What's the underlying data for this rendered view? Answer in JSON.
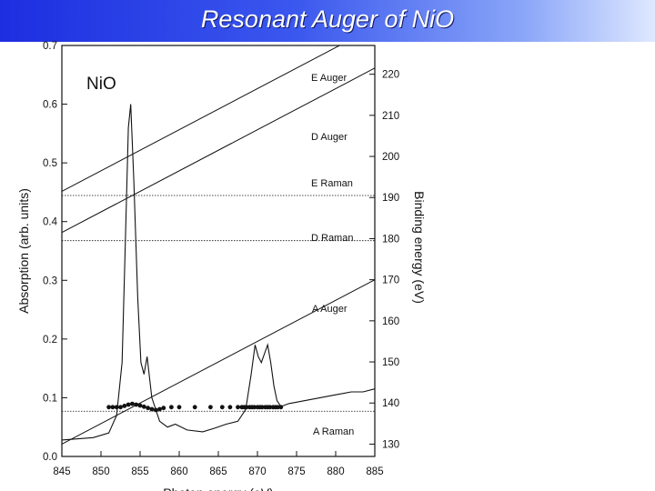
{
  "slide": {
    "title": "Resonant Auger of NiO"
  },
  "chart_data": {
    "type": "scatter",
    "title": "",
    "inset_label": "NiO",
    "xlabel": "Photon energy (eV)",
    "ylabel": "Absorption (arb. units)",
    "y2label": "Binding energy (eV)",
    "xlim": [
      845,
      885
    ],
    "ylim": [
      0,
      0.7
    ],
    "y2lim": [
      127,
      227
    ],
    "xticks": [
      845,
      850,
      855,
      860,
      865,
      870,
      875,
      880,
      885
    ],
    "yticks": [
      0.0,
      0.1,
      0.2,
      0.3,
      0.4,
      0.5,
      0.6,
      0.7
    ],
    "y2ticks": [
      130,
      140,
      150,
      160,
      170,
      180,
      190,
      200,
      210,
      220
    ],
    "guide_lines": [
      {
        "name": "E Auger",
        "kind": "auger",
        "binding_energy_at_845": 191.5
      },
      {
        "name": "D Auger",
        "kind": "auger",
        "binding_energy_at_845": 181.5
      },
      {
        "name": "A Auger",
        "kind": "auger",
        "binding_energy_at_845": 130.0
      },
      {
        "name": "E Raman",
        "kind": "raman",
        "binding_energy": 190.5
      },
      {
        "name": "D Raman",
        "kind": "raman",
        "binding_energy": 179.5
      },
      {
        "name": "A Raman",
        "kind": "raman",
        "binding_energy": 138.0
      }
    ],
    "absorption": {
      "x": [
        845,
        849,
        851,
        852,
        852.7,
        853.1,
        853.5,
        853.8,
        854.2,
        854.7,
        855.1,
        855.5,
        855.9,
        856.5,
        857.5,
        858.5,
        859.5,
        861,
        863,
        864.5,
        866,
        867.5,
        868.5,
        869.2,
        869.7,
        870.1,
        870.5,
        870.9,
        871.3,
        871.7,
        872.1,
        872.5,
        873,
        874,
        876,
        878,
        880,
        882,
        883.5,
        885
      ],
      "y": [
        0.028,
        0.032,
        0.04,
        0.07,
        0.16,
        0.36,
        0.56,
        0.6,
        0.47,
        0.27,
        0.16,
        0.14,
        0.17,
        0.1,
        0.06,
        0.05,
        0.055,
        0.045,
        0.042,
        0.048,
        0.055,
        0.06,
        0.08,
        0.14,
        0.19,
        0.17,
        0.16,
        0.175,
        0.19,
        0.16,
        0.12,
        0.095,
        0.085,
        0.09,
        0.095,
        0.1,
        0.105,
        0.11,
        0.11,
        0.115
      ]
    },
    "series": [
      {
        "x": [
          851,
          851.5,
          852,
          852.5,
          853,
          853.5,
          854,
          854.5,
          855,
          855.5,
          856,
          856.5,
          857,
          857.5,
          858,
          859,
          860,
          862,
          864,
          865.5,
          866.5,
          867.5,
          868,
          868.3,
          868.6,
          869,
          869.3,
          869.6,
          870,
          870.3,
          870.6,
          871,
          871.3,
          871.6,
          872,
          872.3,
          872.6,
          873
        ],
        "y": [
          139,
          139,
          139,
          139,
          139.3,
          139.6,
          139.8,
          139.6,
          139.4,
          139.1,
          138.8,
          138.5,
          138.3,
          138.5,
          138.8,
          139,
          139,
          139,
          139,
          139,
          139,
          139,
          139,
          139,
          139,
          139,
          139,
          139,
          139,
          139,
          139,
          139,
          139,
          139,
          139,
          139,
          139,
          139
        ]
      }
    ]
  }
}
